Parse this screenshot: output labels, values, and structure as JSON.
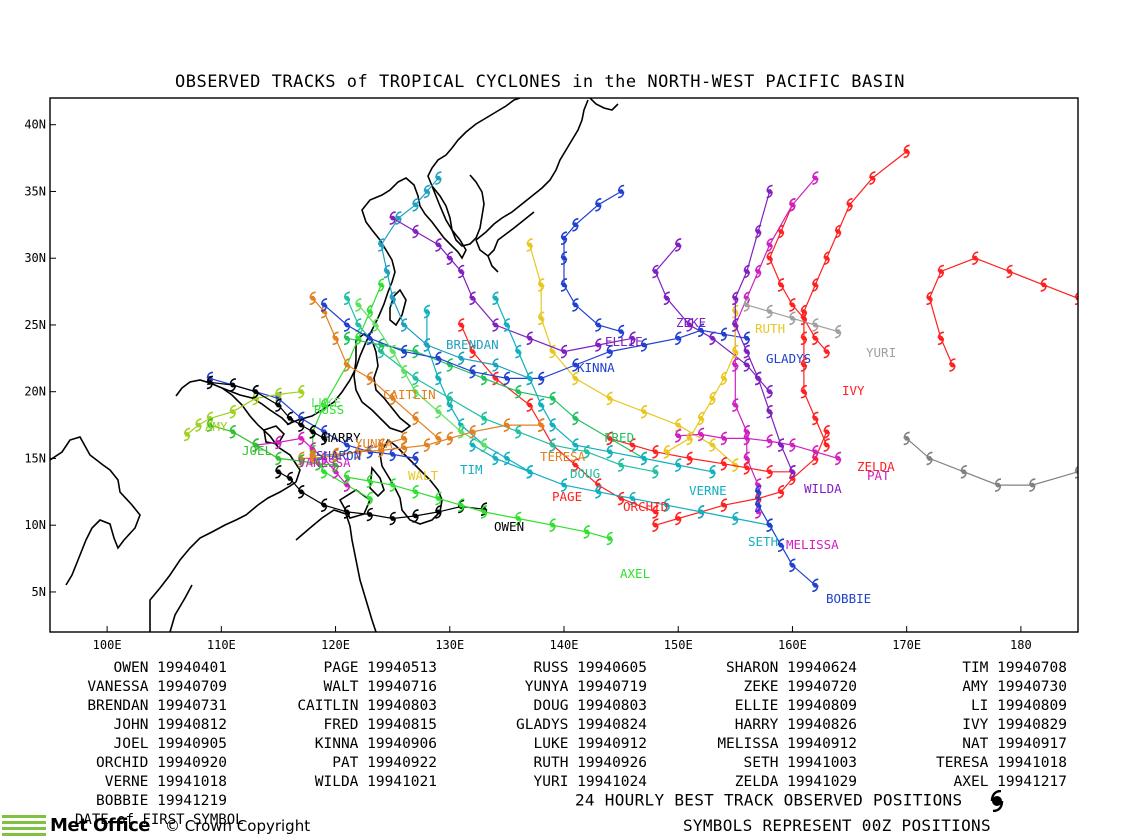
{
  "title": "OBSERVED TRACKS of TROPICAL CYCLONES in the NORTH-WEST PACIFIC BASIN",
  "axes": {
    "lon_ticks": [
      "100E",
      "110E",
      "120E",
      "130E",
      "140E",
      "150E",
      "160E",
      "170E",
      "180"
    ],
    "lat_ticks": [
      "5N",
      "10N",
      "15N",
      "20N",
      "25N",
      "30N",
      "35N",
      "40N"
    ],
    "lon_range": [
      95,
      185
    ],
    "lat_range": [
      2,
      42
    ]
  },
  "storms": [
    {
      "name": "OWEN",
      "date": "19940401",
      "color": "#000000"
    },
    {
      "name": "PAGE",
      "date": "19940513",
      "color": "#ff2020"
    },
    {
      "name": "RUSS",
      "date": "19940605",
      "color": "#30e030"
    },
    {
      "name": "SHARON",
      "date": "19940624",
      "color": "#2040d0"
    },
    {
      "name": "TIM",
      "date": "19940708",
      "color": "#10b0c0"
    },
    {
      "name": "VANESSA",
      "date": "19940709",
      "color": "#d020c0"
    },
    {
      "name": "WALT",
      "date": "19940716",
      "color": "#e8c820"
    },
    {
      "name": "YUNYA",
      "date": "19940719",
      "color": "#e08020"
    },
    {
      "name": "ZEKE",
      "date": "19940720",
      "color": "#8020c0"
    },
    {
      "name": "AMY",
      "date": "19940730",
      "color": "#a0d020"
    },
    {
      "name": "BRENDAN",
      "date": "19940731",
      "color": "#20a0c0"
    },
    {
      "name": "CAITLIN",
      "date": "19940803",
      "color": "#e08020"
    },
    {
      "name": "DOUG",
      "date": "19940803",
      "color": "#20c0a0"
    },
    {
      "name": "ELLIE",
      "date": "19940809",
      "color": "#8020c0"
    },
    {
      "name": "LI",
      "date": "19940809",
      "color": "#ff2020"
    },
    {
      "name": "JOHN",
      "date": "19940812",
      "color": "#808080"
    },
    {
      "name": "FRED",
      "date": "19940815",
      "color": "#20c060"
    },
    {
      "name": "GLADYS",
      "date": "19940824",
      "color": "#2040d0"
    },
    {
      "name": "HARRY",
      "date": "19940826",
      "color": "#000000"
    },
    {
      "name": "IVY",
      "date": "19940829",
      "color": "#ff2020"
    },
    {
      "name": "JOEL",
      "date": "19940905",
      "color": "#30c030"
    },
    {
      "name": "KINNA",
      "date": "19940906",
      "color": "#2040d0"
    },
    {
      "name": "LUKE",
      "date": "19940912",
      "color": "#60e060"
    },
    {
      "name": "MELISSA",
      "date": "19940912",
      "color": "#d020c0"
    },
    {
      "name": "NAT",
      "date": "19940917",
      "color": "#ff2020"
    },
    {
      "name": "ORCHID",
      "date": "19940920",
      "color": "#ff2020"
    },
    {
      "name": "PAT",
      "date": "19940922",
      "color": "#d020c0"
    },
    {
      "name": "RUTH",
      "date": "19940926",
      "color": "#e8c820"
    },
    {
      "name": "SETH",
      "date": "19941003",
      "color": "#10b0c0"
    },
    {
      "name": "TERESA",
      "date": "19941018",
      "color": "#e08020"
    },
    {
      "name": "VERNE",
      "date": "19941018",
      "color": "#10b0c0"
    },
    {
      "name": "WILDA",
      "date": "19941021",
      "color": "#8020c0"
    },
    {
      "name": "YURI",
      "date": "19941024",
      "color": "#a0a0a0"
    },
    {
      "name": "ZELDA",
      "date": "19941029",
      "color": "#ff2020"
    },
    {
      "name": "AXEL",
      "date": "19941217",
      "color": "#30e030"
    },
    {
      "name": "BOBBIE",
      "date": "19941219",
      "color": "#2040d0"
    }
  ],
  "footer": {
    "legend_line": "24 HOURLY BEST TRACK OBSERVED POSITIONS",
    "symbols_line": "SYMBOLS REPRESENT 00Z POSITIONS",
    "date_note": "DATE of FIRST SYMBOL",
    "copyright": "© Crown Copyright",
    "logo_text": "Met Office"
  },
  "map_labels": [
    {
      "text": "BRENDAN",
      "color": "#20a0c0"
    },
    {
      "text": "ELLIE",
      "color": "#8020c0"
    },
    {
      "text": "KINNA",
      "color": "#2040d0"
    },
    {
      "text": "ZEKE",
      "color": "#8020c0"
    },
    {
      "text": "RUTH",
      "color": "#e8c820"
    },
    {
      "text": "GLADYS",
      "color": "#2040d0"
    },
    {
      "text": "YURI",
      "color": "#a0a0a0"
    },
    {
      "text": "IVY",
      "color": "#ff2020"
    },
    {
      "text": "CAITLIN",
      "color": "#e08020"
    },
    {
      "text": "LUKE",
      "color": "#60e060"
    },
    {
      "text": "RUSS",
      "color": "#30e030"
    },
    {
      "text": "AMY",
      "color": "#a0d020"
    },
    {
      "text": "HARRY",
      "color": "#000000"
    },
    {
      "text": "YUNYA",
      "color": "#e08020"
    },
    {
      "text": "JOEL",
      "color": "#30c030"
    },
    {
      "text": "SHARON",
      "color": "#2040d0"
    },
    {
      "text": "VANESSA",
      "color": "#d020c0"
    },
    {
      "text": "WALT",
      "color": "#e8c820"
    },
    {
      "text": "TIM",
      "color": "#10b0c0"
    },
    {
      "text": "TERESA",
      "color": "#e08020"
    },
    {
      "text": "DOUG",
      "color": "#20c0a0"
    },
    {
      "text": "FRED",
      "color": "#20c060"
    },
    {
      "text": "PAGE",
      "color": "#ff2020"
    },
    {
      "text": "ORCHID",
      "color": "#ff2020"
    },
    {
      "text": "VERNE",
      "color": "#10b0c0"
    },
    {
      "text": "ZELDA",
      "color": "#ff2020"
    },
    {
      "text": "PAT",
      "color": "#d020c0"
    },
    {
      "text": "WILDA",
      "color": "#8020c0"
    },
    {
      "text": "OWEN",
      "color": "#000000"
    },
    {
      "text": "SETH",
      "color": "#10b0c0"
    },
    {
      "text": "MELISSA",
      "color": "#d020c0"
    },
    {
      "text": "AXEL",
      "color": "#30e030"
    },
    {
      "text": "BOBBIE",
      "color": "#2040d0"
    }
  ]
}
